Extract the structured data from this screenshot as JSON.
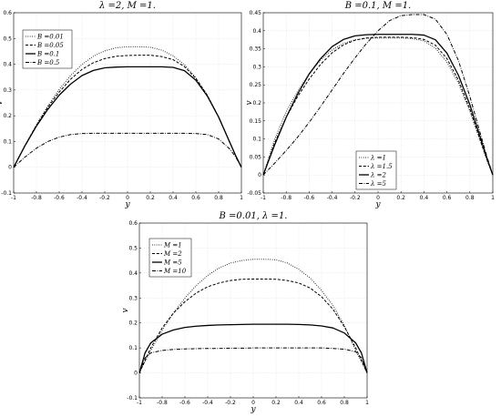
{
  "chart_data": [
    {
      "type": "line",
      "title": "λ =2, M =1.",
      "xlabel": "y",
      "ylabel": "v",
      "xlim": [
        -1,
        1
      ],
      "ylim": [
        -0.1,
        0.6
      ],
      "xticks": [
        -1,
        -0.8,
        -0.6,
        -0.4,
        -0.2,
        0,
        0.2,
        0.4,
        0.6,
        0.8,
        1
      ],
      "yticks": [
        -0.1,
        0,
        0.1,
        0.2,
        0.3,
        0.4,
        0.5,
        0.6
      ],
      "xtick_labels": [
        "-1",
        "-0.8",
        "-0.6",
        "-0.4",
        "-0.2",
        "0",
        "0.2",
        "0.4",
        "0.6",
        "0.8",
        "1"
      ],
      "ytick_labels": [
        "-0.1",
        "0",
        "0.1",
        "0.2",
        "0.3",
        "0.4",
        "0.5",
        "0.6"
      ],
      "grid": true,
      "legend_position": "top-left",
      "x": [
        -1,
        -0.9,
        -0.8,
        -0.7,
        -0.6,
        -0.5,
        -0.4,
        -0.3,
        -0.2,
        -0.1,
        0,
        0.1,
        0.2,
        0.3,
        0.4,
        0.5,
        0.6,
        0.7,
        0.8,
        0.9,
        0.95,
        1
      ],
      "series": [
        {
          "name": "B =0.01",
          "style": "dotted",
          "values": [
            0,
            0.085,
            0.165,
            0.238,
            0.302,
            0.356,
            0.399,
            0.431,
            0.452,
            0.464,
            0.468,
            0.468,
            0.466,
            0.455,
            0.433,
            0.398,
            0.348,
            0.281,
            0.196,
            0.095,
            0.045,
            0
          ]
        },
        {
          "name": "B =0.05",
          "style": "dashed",
          "values": [
            0,
            0.085,
            0.163,
            0.233,
            0.292,
            0.342,
            0.38,
            0.406,
            0.422,
            0.431,
            0.434,
            0.435,
            0.435,
            0.43,
            0.418,
            0.391,
            0.345,
            0.28,
            0.195,
            0.095,
            0.045,
            0
          ]
        },
        {
          "name": "B =0.1",
          "style": "solid",
          "values": [
            0,
            0.084,
            0.16,
            0.225,
            0.28,
            0.323,
            0.356,
            0.376,
            0.386,
            0.389,
            0.39,
            0.39,
            0.39,
            0.39,
            0.388,
            0.375,
            0.338,
            0.277,
            0.195,
            0.095,
            0.045,
            0
          ]
        },
        {
          "name": "B =0.5",
          "style": "dashdot",
          "values": [
            0,
            0.04,
            0.074,
            0.1,
            0.117,
            0.127,
            0.131,
            0.132,
            0.132,
            0.132,
            0.132,
            0.132,
            0.132,
            0.132,
            0.132,
            0.132,
            0.131,
            0.127,
            0.11,
            0.07,
            0.04,
            0
          ]
        }
      ]
    },
    {
      "type": "line",
      "title": "B =0.1, M =1.",
      "xlabel": "y",
      "ylabel": "v",
      "xlim": [
        -1,
        1
      ],
      "ylim": [
        -0.05,
        0.45
      ],
      "xticks": [
        -1,
        -0.8,
        -0.6,
        -0.4,
        -0.2,
        0,
        0.2,
        0.4,
        0.6,
        0.8,
        1
      ],
      "yticks": [
        -0.05,
        0,
        0.05,
        0.1,
        0.15,
        0.2,
        0.25,
        0.3,
        0.35,
        0.4,
        0.45
      ],
      "xtick_labels": [
        "-1",
        "-0.8",
        "-0.6",
        "-0.4",
        "-0.2",
        "0",
        "0.2",
        "0.4",
        "0.6",
        "0.8",
        "1"
      ],
      "ytick_labels": [
        "-0.05",
        "0",
        "0.05",
        "0.1",
        "0.15",
        "0.2",
        "0.25",
        "0.3",
        "0.35",
        "0.4",
        "0.45"
      ],
      "grid": true,
      "legend_position": "bottom-right",
      "x": [
        -1,
        -0.9,
        -0.8,
        -0.7,
        -0.6,
        -0.5,
        -0.4,
        -0.3,
        -0.2,
        -0.1,
        0,
        0.1,
        0.2,
        0.3,
        0.4,
        0.5,
        0.6,
        0.7,
        0.8,
        0.9,
        0.95,
        1
      ],
      "series": [
        {
          "name": "λ =1",
          "style": "dotted",
          "values": [
            0,
            0.1,
            0.175,
            0.233,
            0.281,
            0.319,
            0.347,
            0.365,
            0.375,
            0.379,
            0.38,
            0.38,
            0.38,
            0.378,
            0.372,
            0.352,
            0.313,
            0.255,
            0.177,
            0.085,
            0.04,
            0
          ]
        },
        {
          "name": "λ =1.5",
          "style": "dashed",
          "values": [
            0,
            0.09,
            0.16,
            0.218,
            0.266,
            0.307,
            0.339,
            0.361,
            0.374,
            0.38,
            0.382,
            0.382,
            0.382,
            0.381,
            0.376,
            0.36,
            0.323,
            0.263,
            0.183,
            0.088,
            0.042,
            0
          ]
        },
        {
          "name": "λ =2",
          "style": "solid",
          "values": [
            0,
            0.084,
            0.16,
            0.225,
            0.28,
            0.323,
            0.356,
            0.376,
            0.386,
            0.389,
            0.39,
            0.39,
            0.39,
            0.39,
            0.388,
            0.375,
            0.338,
            0.277,
            0.195,
            0.095,
            0.045,
            0
          ]
        },
        {
          "name": "λ =5",
          "style": "dashdot",
          "values": [
            0,
            0.033,
            0.068,
            0.105,
            0.146,
            0.19,
            0.236,
            0.282,
            0.325,
            0.365,
            0.4,
            0.428,
            0.442,
            0.445,
            0.445,
            0.432,
            0.39,
            0.318,
            0.218,
            0.105,
            0.05,
            0
          ]
        }
      ]
    },
    {
      "type": "line",
      "title": "B =0.01, λ =1.",
      "xlabel": "y",
      "ylabel": "v",
      "xlim": [
        -1,
        1
      ],
      "ylim": [
        -0.1,
        0.6
      ],
      "xticks": [
        -1,
        -0.8,
        -0.6,
        -0.4,
        -0.2,
        0,
        0.2,
        0.4,
        0.6,
        0.8,
        1
      ],
      "yticks": [
        -0.1,
        0,
        0.1,
        0.2,
        0.3,
        0.4,
        0.5,
        0.6
      ],
      "xtick_labels": [
        "-1",
        "-0.8",
        "-0.6",
        "-0.4",
        "-0.2",
        "0",
        "0.2",
        "0.4",
        "0.6",
        "0.8",
        "1"
      ],
      "ytick_labels": [
        "-0.1",
        "0",
        "0.1",
        "0.2",
        "0.3",
        "0.4",
        "0.5",
        "0.6"
      ],
      "grid": true,
      "legend_position": "top-left",
      "x": [
        -1,
        -0.95,
        -0.9,
        -0.8,
        -0.7,
        -0.6,
        -0.5,
        -0.4,
        -0.3,
        -0.2,
        -0.1,
        0,
        0.1,
        0.2,
        0.3,
        0.4,
        0.5,
        0.6,
        0.7,
        0.8,
        0.9,
        0.95,
        1
      ],
      "series": [
        {
          "name": "M =1",
          "style": "dotted",
          "values": [
            0,
            0.045,
            0.09,
            0.17,
            0.24,
            0.3,
            0.35,
            0.39,
            0.42,
            0.44,
            0.45,
            0.455,
            0.455,
            0.453,
            0.44,
            0.415,
            0.38,
            0.33,
            0.27,
            0.19,
            0.09,
            0.045,
            0
          ]
        },
        {
          "name": "M =2",
          "style": "dashed",
          "values": [
            0,
            0.05,
            0.1,
            0.18,
            0.24,
            0.285,
            0.32,
            0.345,
            0.36,
            0.37,
            0.375,
            0.376,
            0.376,
            0.375,
            0.37,
            0.36,
            0.34,
            0.305,
            0.255,
            0.185,
            0.1,
            0.05,
            0
          ]
        },
        {
          "name": "M =5",
          "style": "solid",
          "values": [
            0,
            0.08,
            0.12,
            0.155,
            0.172,
            0.182,
            0.187,
            0.19,
            0.192,
            0.193,
            0.194,
            0.195,
            0.195,
            0.195,
            0.195,
            0.194,
            0.192,
            0.188,
            0.18,
            0.16,
            0.12,
            0.08,
            0
          ]
        },
        {
          "name": "M =10",
          "style": "dashdot",
          "values": [
            0,
            0.06,
            0.08,
            0.09,
            0.094,
            0.096,
            0.097,
            0.098,
            0.098,
            0.099,
            0.099,
            0.1,
            0.1,
            0.1,
            0.1,
            0.1,
            0.1,
            0.1,
            0.098,
            0.095,
            0.085,
            0.06,
            0
          ]
        }
      ]
    }
  ]
}
